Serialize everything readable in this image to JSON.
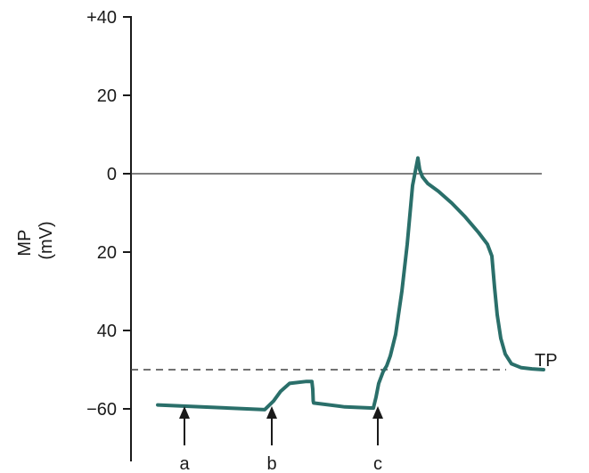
{
  "chart_data": {
    "type": "line",
    "xlabel": "",
    "ylabel": "MP\n(mV)",
    "yaxis": {
      "ticks": [
        40,
        20,
        0,
        -20,
        -40,
        -60
      ],
      "tick_labels": [
        "+40",
        "20",
        "0",
        "20",
        "40",
        "−60"
      ],
      "range": [
        -78,
        43
      ]
    },
    "zero_line": 0,
    "threshold": {
      "value": -50,
      "label": "TP"
    },
    "series": [
      {
        "color": "#2a6f6a",
        "points": [
          [
            30,
            -59
          ],
          [
            130,
            -60
          ],
          [
            150,
            -60.2
          ],
          [
            160,
            -58
          ],
          [
            168,
            -55.5
          ],
          [
            178,
            -53.5
          ],
          [
            197,
            -53
          ],
          [
            203,
            -53
          ],
          [
            204,
            -55
          ],
          [
            204.5,
            -58
          ],
          [
            205,
            -58.5
          ],
          [
            240,
            -59.5
          ],
          [
            272,
            -59.8
          ],
          [
            275,
            -57
          ],
          [
            278,
            -53.5
          ],
          [
            283,
            -50.5
          ],
          [
            287,
            -49
          ],
          [
            291,
            -46.5
          ],
          [
            297,
            -41
          ],
          [
            304,
            -30
          ],
          [
            310,
            -18
          ],
          [
            316,
            -3
          ],
          [
            319,
            0.5
          ],
          [
            322,
            4
          ],
          [
            324,
            1
          ],
          [
            327,
            -0.8
          ],
          [
            333,
            -2.5
          ],
          [
            345,
            -4.5
          ],
          [
            360,
            -7.5
          ],
          [
            375,
            -11
          ],
          [
            390,
            -15
          ],
          [
            400,
            -18
          ],
          [
            405,
            -21
          ],
          [
            408,
            -29
          ],
          [
            411,
            -36
          ],
          [
            415,
            -42
          ],
          [
            420,
            -46
          ],
          [
            427,
            -48.5
          ],
          [
            438,
            -49.5
          ],
          [
            450,
            -49.8
          ],
          [
            463,
            -50
          ]
        ]
      }
    ],
    "markers": [
      {
        "label": "a",
        "x": 60
      },
      {
        "label": "b",
        "x": 158
      },
      {
        "label": "c",
        "x": 277
      }
    ]
  }
}
